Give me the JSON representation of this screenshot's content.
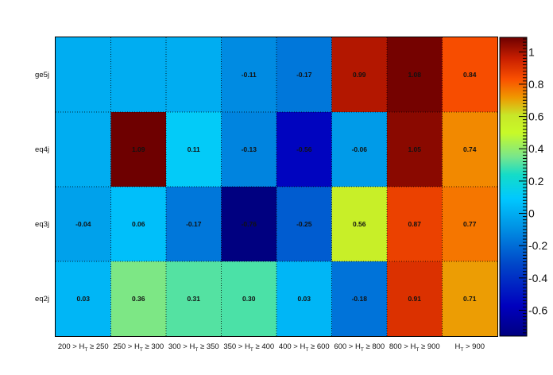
{
  "chart_data": {
    "type": "heatmap",
    "rows": [
      "ge5j",
      "eq4j",
      "eq3j",
      "eq2j"
    ],
    "columns": [
      {
        "a": "200 > H",
        "b": " ≥ 250"
      },
      {
        "a": "250 > H",
        "b": " ≥ 300"
      },
      {
        "a": "300 > H",
        "b": " ≥ 350"
      },
      {
        "a": "350 > H",
        "b": " ≥ 400"
      },
      {
        "a": "400 > H",
        "b": " ≥ 600"
      },
      {
        "a": "600 > H",
        "b": " ≥ 800"
      },
      {
        "a": "800 > H",
        "b": " ≥ 900"
      },
      {
        "a": "H",
        "b": " > 900"
      }
    ],
    "column_subscript": "T",
    "values": [
      [
        0.0,
        0.0,
        0.0,
        -0.11,
        -0.17,
        0.99,
        1.08,
        0.84
      ],
      [
        0.0,
        1.09,
        0.11,
        -0.13,
        -0.56,
        -0.06,
        1.05,
        0.74
      ],
      [
        -0.04,
        0.06,
        -0.17,
        -0.76,
        -0.25,
        0.56,
        0.87,
        0.77
      ],
      [
        0.03,
        0.36,
        0.31,
        0.3,
        0.03,
        -0.18,
        0.91,
        0.71
      ]
    ],
    "labels": [
      [
        "",
        "",
        "",
        "-0.11",
        "-0.17",
        "0.99",
        "1.08",
        "0.84"
      ],
      [
        "",
        "1.09",
        "0.11",
        "-0.13",
        "-0.56",
        "-0.06",
        "1.05",
        "0.74"
      ],
      [
        "-0.04",
        "0.06",
        "-0.17",
        "-0.76",
        "-0.25",
        "0.56",
        "0.87",
        "0.77"
      ],
      [
        "0.03",
        "0.36",
        "0.31",
        "0.30",
        "0.03",
        "-0.18",
        "0.91",
        "0.71"
      ]
    ],
    "zlim": [
      -0.76,
      1.09
    ],
    "colorbar_ticks": [
      "-0.6",
      "-0.4",
      "-0.2",
      "0",
      "0.2",
      "0.4",
      "0.6",
      "0.8",
      "1"
    ],
    "colormap": "rainbow",
    "grid": true
  }
}
